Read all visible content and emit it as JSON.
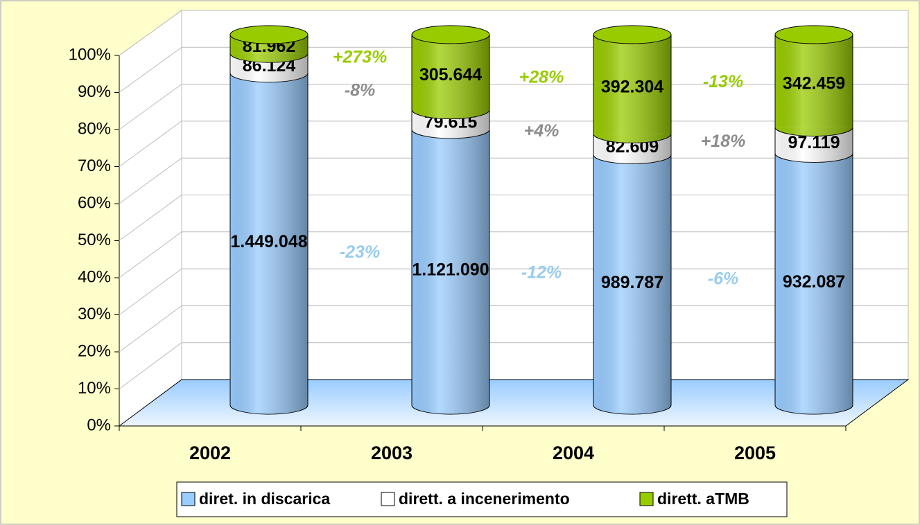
{
  "chart_data": {
    "type": "bar",
    "percent_stacked": true,
    "categories": [
      "2002",
      "2003",
      "2004",
      "2005"
    ],
    "series": [
      {
        "name": "diret. in discarica",
        "color": "#99ccff",
        "label_color": "#99ccee",
        "values": [
          1449048,
          1121090,
          989787,
          932087
        ],
        "value_labels": [
          "1.449.048",
          "1.121.090",
          "989.787",
          "932.087"
        ],
        "changes": [
          "-23%",
          "-12%",
          "-6%"
        ]
      },
      {
        "name": "dirett. a incenerimento",
        "color": "#ffffff",
        "label_color": "#8c8c8c",
        "values": [
          86124,
          79615,
          82609,
          97119
        ],
        "value_labels": [
          "86.124",
          "79.615",
          "82.609",
          "97.119"
        ],
        "changes": [
          "-8%",
          "+4%",
          "+18%"
        ]
      },
      {
        "name": "dirett. aTMB",
        "color": "#99cc00",
        "label_color": "#99cc00",
        "values": [
          81962,
          305644,
          392304,
          342459
        ],
        "value_labels": [
          "81.962",
          "305.644",
          "392.304",
          "342.459"
        ],
        "changes": [
          "+273%",
          "+28%",
          "-13%"
        ]
      }
    ],
    "ylim": [
      0,
      100
    ],
    "yticks": [
      {
        "value": 0,
        "label": "0%"
      },
      {
        "value": 10,
        "label": "10%"
      },
      {
        "value": 20,
        "label": "20%"
      },
      {
        "value": 30,
        "label": "30%"
      },
      {
        "value": 40,
        "label": "40%"
      },
      {
        "value": 50,
        "label": "50%"
      },
      {
        "value": 60,
        "label": "60%"
      },
      {
        "value": 70,
        "label": "70%"
      },
      {
        "value": 80,
        "label": "80%"
      },
      {
        "value": 90,
        "label": "90%"
      },
      {
        "value": 100,
        "label": "100%"
      }
    ],
    "grid": true,
    "legend": "bottom"
  }
}
